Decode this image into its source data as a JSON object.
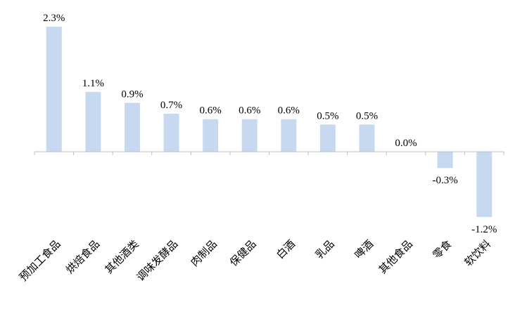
{
  "chart_data": {
    "type": "bar",
    "title": "",
    "xlabel": "",
    "ylabel": "",
    "categories": [
      "预加工食品",
      "烘焙食品",
      "其他酒类",
      "调味发酵品",
      "肉制品",
      "保健品",
      "白酒",
      "乳品",
      "啤酒",
      "其他食品",
      "零食",
      "软饮料"
    ],
    "values": [
      2.3,
      1.1,
      0.9,
      0.7,
      0.6,
      0.6,
      0.6,
      0.5,
      0.5,
      0.0,
      -0.3,
      -1.2
    ],
    "data_labels": [
      "2.3%",
      "1.1%",
      "0.9%",
      "0.7%",
      "0.6%",
      "0.6%",
      "0.6%",
      "0.5%",
      "0.5%",
      "0.0%",
      "-0.3%",
      "-1.2%"
    ],
    "unit": "%",
    "ylim": [
      -1.25,
      2.35
    ],
    "grid": false,
    "legend": "none",
    "bar_color": "#C6D9F1",
    "axis_color": "#BFBFBF"
  }
}
